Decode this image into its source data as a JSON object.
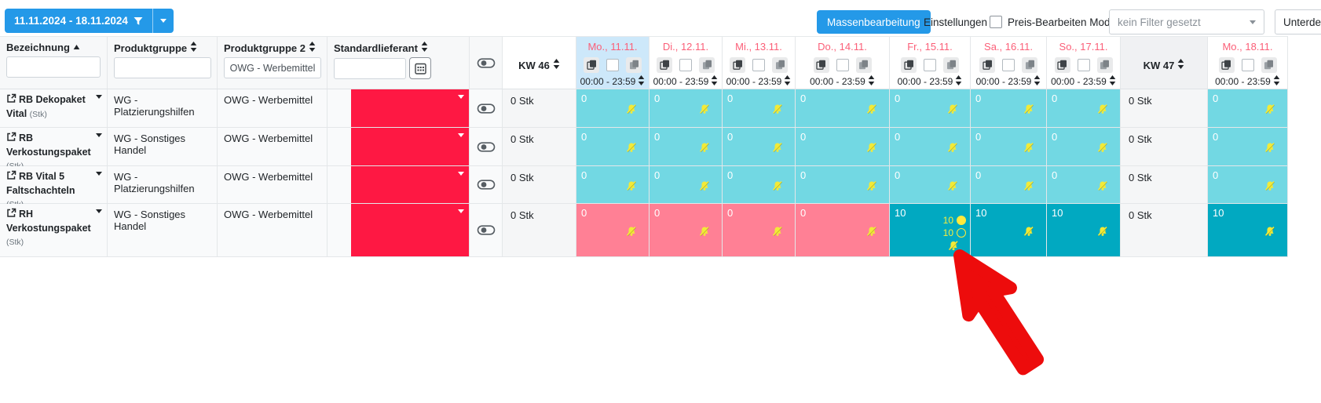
{
  "toolbar": {
    "date_range_label": "11.11.2024 - 18.11.2024",
    "mass_edit_button": "Massenbearbeitung",
    "settings_button": "Einstellungen",
    "price_edit_checkbox_label": "Preis-Bearbeiten Modus",
    "price_edit_checked": false,
    "filter_select_value": "kein Filter gesetzt",
    "undersupply_button": "Unterdeckung"
  },
  "table": {
    "columns": {
      "bezeichnung": {
        "label": "Bezeichnung",
        "sort": "asc",
        "filter_value": ""
      },
      "produktgruppe": {
        "label": "Produktgruppe",
        "sort": "both",
        "filter_value": ""
      },
      "produktgruppe2": {
        "label": "Produktgruppe 2",
        "sort": "both",
        "filter_value": "OWG - Werbemittel"
      },
      "standardlieferant": {
        "label": "Standardlieferant",
        "sort": "both",
        "filter_value": ""
      },
      "kw46": "KW 46",
      "kw47": "KW 47"
    },
    "time_range": "00:00 - 23:59",
    "days": [
      "Mo., 11.11.",
      "Di., 12.11.",
      "Mi., 13.11.",
      "Do., 14.11.",
      "Fr., 15.11.",
      "Sa., 16.11.",
      "So., 17.11."
    ],
    "highlighted_day_index": 0,
    "extra_day": "Mo., 18.11."
  },
  "rows": [
    {
      "name": "RB Dekopaket Vital",
      "unit": "(Stk)",
      "produktgruppe": "WG - Platzierungshilfen",
      "produktgruppe2": "OWG - Werbemittel",
      "kw46_total": "0 Stk",
      "kw47_total": "0 Stk",
      "cells": [
        {
          "v": "0",
          "c": "cyan"
        },
        {
          "v": "0",
          "c": "cyan"
        },
        {
          "v": "0",
          "c": "cyan"
        },
        {
          "v": "0",
          "c": "cyan"
        },
        {
          "v": "0",
          "c": "cyan"
        },
        {
          "v": "0",
          "c": "cyan"
        },
        {
          "v": "0",
          "c": "cyan"
        }
      ],
      "mo18": {
        "v": "0",
        "c": "cyan"
      }
    },
    {
      "name": "RB Verkostungspaket",
      "unit": "(Stk)",
      "produktgruppe": "WG - Sonstiges Handel",
      "produktgruppe2": "OWG - Werbemittel",
      "kw46_total": "0 Stk",
      "kw47_total": "0 Stk",
      "cells": [
        {
          "v": "0",
          "c": "cyan"
        },
        {
          "v": "0",
          "c": "cyan"
        },
        {
          "v": "0",
          "c": "cyan"
        },
        {
          "v": "0",
          "c": "cyan"
        },
        {
          "v": "0",
          "c": "cyan"
        },
        {
          "v": "0",
          "c": "cyan"
        },
        {
          "v": "0",
          "c": "cyan"
        }
      ],
      "mo18": {
        "v": "0",
        "c": "cyan"
      }
    },
    {
      "name": "RB Vital 5 Faltschachteln",
      "unit": "(Stk)",
      "produktgruppe": "WG - Platzierungshilfen",
      "produktgruppe2": "OWG - Werbemittel",
      "kw46_total": "0 Stk",
      "kw47_total": "0 Stk",
      "cells": [
        {
          "v": "0",
          "c": "cyan"
        },
        {
          "v": "0",
          "c": "cyan"
        },
        {
          "v": "0",
          "c": "cyan"
        },
        {
          "v": "0",
          "c": "cyan"
        },
        {
          "v": "0",
          "c": "cyan"
        },
        {
          "v": "0",
          "c": "cyan"
        },
        {
          "v": "0",
          "c": "cyan"
        }
      ],
      "mo18": {
        "v": "0",
        "c": "cyan"
      }
    },
    {
      "name": "RH Verkostungspaket",
      "unit": "(Stk)",
      "produktgruppe": "WG - Sonstiges Handel",
      "produktgruppe2": "OWG - Werbemittel",
      "kw46_total": "0 Stk",
      "kw47_total": "0 Stk",
      "cells": [
        {
          "v": "0",
          "c": "pink"
        },
        {
          "v": "0",
          "c": "pink"
        },
        {
          "v": "0",
          "c": "pink"
        },
        {
          "v": "0",
          "c": "pink"
        },
        {
          "v": "10",
          "c": "teal",
          "details": [
            {
              "v": "10",
              "marker": "filled"
            },
            {
              "v": "10",
              "marker": "open"
            }
          ]
        },
        {
          "v": "10",
          "c": "teal"
        },
        {
          "v": "10",
          "c": "teal"
        }
      ],
      "mo18": {
        "v": "10",
        "c": "teal"
      }
    }
  ],
  "icons": {
    "bell": "muted-bell-icon",
    "copy": "copy-day-icon",
    "paste": "paste-day-icon",
    "toggle": "visibility-toggle-icon",
    "external_link": "external-link-icon",
    "calendar": "calendar-icon",
    "funnel": "filter-funnel-icon",
    "sort": "sort-icon"
  },
  "colors": {
    "accent": "#2499e8",
    "red": "#fe1843",
    "cyan": "#72d8e3",
    "teal": "#01a9c1",
    "pink": "#ff8095",
    "highlight": "#cde8fa",
    "day_label": "#fb5f78",
    "arrow": "#ed0c0c"
  }
}
